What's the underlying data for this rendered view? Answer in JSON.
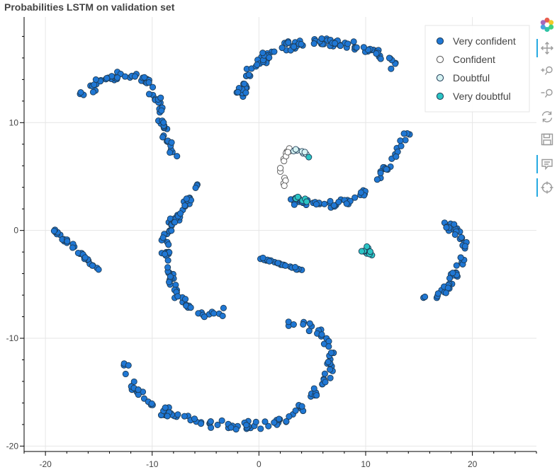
{
  "chart_data": {
    "type": "scatter",
    "title": "Probabilities LSTM on validation set",
    "xlabel": "",
    "ylabel": "",
    "xlim": [
      -22,
      26
    ],
    "ylim": [
      -20.5,
      19.8
    ],
    "x_ticks": [
      -20,
      -10,
      0,
      10,
      20
    ],
    "y_ticks": [
      -20,
      -10,
      0,
      10
    ],
    "x_tick_labels": [
      "-20",
      "-10",
      "0",
      "10",
      "20"
    ],
    "y_tick_labels": [
      "-20",
      "-10",
      "0",
      "10"
    ],
    "grid": true,
    "legend_position": "top-right",
    "series": [
      {
        "name": "Very confident",
        "color": "#1f77d4",
        "clusters": [
          {
            "points": [
              [
                -16.2,
                12.0
              ],
              [
                -16.5,
                12.7
              ],
              [
                -15.8,
                13.1
              ],
              [
                -15.0,
                13.8
              ],
              [
                -14.0,
                14.2
              ],
              [
                -13.0,
                14.6
              ],
              [
                -12.0,
                14.4
              ],
              [
                -11.0,
                14.2
              ],
              [
                -10.3,
                13.5
              ],
              [
                -9.8,
                12.8
              ],
              [
                -9.4,
                11.7
              ],
              [
                -9.1,
                10.5
              ],
              [
                -8.9,
                9.4
              ],
              [
                -8.6,
                8.3
              ],
              [
                -8.3,
                7.5
              ],
              [
                -8.1,
                7.0
              ]
            ],
            "spread": 0.5,
            "n": 75,
            "seed": 11
          },
          {
            "points": [
              [
                -1.8,
                12.0
              ],
              [
                -1.5,
                13.2
              ],
              [
                -1.0,
                14.3
              ],
              [
                -0.4,
                15.3
              ],
              [
                0.3,
                16.0
              ],
              [
                1.5,
                16.7
              ],
              [
                3.0,
                17.1
              ],
              [
                5.0,
                17.5
              ],
              [
                7.0,
                17.4
              ],
              [
                9.0,
                17.1
              ],
              [
                10.5,
                16.7
              ],
              [
                11.6,
                16.2
              ],
              [
                12.4,
                15.6
              ],
              [
                12.8,
                15.2
              ],
              [
                12.6,
                14.6
              ]
            ],
            "spread": 0.5,
            "n": 110,
            "seed": 23
          },
          {
            "points": [
              [
                -19.3,
                0.1
              ],
              [
                -18.5,
                -0.6
              ],
              [
                -17.5,
                -1.4
              ],
              [
                -16.5,
                -2.3
              ],
              [
                -15.7,
                -3.1
              ],
              [
                -15.0,
                -3.7
              ]
            ],
            "spread": 0.18,
            "n": 35,
            "seed": 37
          },
          {
            "points": [
              [
                -5.8,
                4.6
              ],
              [
                -6.2,
                3.6
              ],
              [
                -7.0,
                2.2
              ],
              [
                -8.0,
                0.8
              ],
              [
                -8.8,
                -0.7
              ],
              [
                -8.8,
                -2.2
              ],
              [
                -8.4,
                -3.8
              ],
              [
                -8.2,
                -5.0
              ],
              [
                -7.5,
                -6.0
              ],
              [
                -6.8,
                -6.9
              ],
              [
                -6.0,
                -7.5
              ],
              [
                -5.0,
                -7.8
              ],
              [
                -4.0,
                -7.7
              ],
              [
                -3.3,
                -7.6
              ]
            ],
            "spread": 0.45,
            "n": 85,
            "seed": 41
          },
          {
            "points": [
              [
                0.0,
                -2.5
              ],
              [
                1.0,
                -2.8
              ],
              [
                2.0,
                -3.1
              ],
              [
                3.0,
                -3.4
              ],
              [
                3.8,
                -3.6
              ],
              [
                4.3,
                -3.8
              ]
            ],
            "spread": 0.12,
            "n": 26,
            "seed": 53
          },
          {
            "points": [
              [
                3.0,
                2.7
              ],
              [
                5.0,
                2.5
              ],
              [
                7.0,
                2.4
              ],
              [
                8.5,
                2.8
              ],
              [
                9.8,
                3.5
              ],
              [
                11.0,
                4.7
              ],
              [
                12.3,
                6.2
              ],
              [
                13.2,
                7.5
              ],
              [
                13.6,
                8.8
              ],
              [
                14.2,
                8.9
              ]
            ],
            "spread": 0.35,
            "n": 60,
            "seed": 67
          },
          {
            "points": [
              [
                17.5,
                0.6
              ],
              [
                18.5,
                0.0
              ],
              [
                19.2,
                -1.2
              ],
              [
                19.1,
                -2.6
              ],
              [
                18.5,
                -3.9
              ],
              [
                17.8,
                -5.1
              ],
              [
                17.0,
                -5.9
              ],
              [
                16.3,
                -6.3
              ],
              [
                15.5,
                -6.1
              ]
            ],
            "spread": 0.45,
            "n": 55,
            "seed": 71
          },
          {
            "points": [
              [
                -12.8,
                -12.3
              ],
              [
                -12.0,
                -13.8
              ],
              [
                -11.2,
                -15.1
              ],
              [
                -10.0,
                -16.3
              ],
              [
                -8.0,
                -17.2
              ],
              [
                -6.0,
                -17.6
              ],
              [
                -4.0,
                -17.9
              ],
              [
                -2.0,
                -18.2
              ],
              [
                0.0,
                -18.0
              ],
              [
                2.0,
                -17.7
              ],
              [
                3.5,
                -17.0
              ],
              [
                4.7,
                -15.8
              ],
              [
                5.8,
                -14.3
              ],
              [
                6.6,
                -13.0
              ],
              [
                6.8,
                -11.3
              ],
              [
                6.2,
                -9.8
              ],
              [
                5.2,
                -9.0
              ],
              [
                4.0,
                -8.6
              ],
              [
                3.0,
                -8.7
              ]
            ],
            "spread": 0.5,
            "n": 125,
            "seed": 83
          }
        ]
      },
      {
        "name": "Confident",
        "color": "#ffffff",
        "clusters": [
          {
            "points": [
              [
                3.0,
                7.9
              ],
              [
                2.6,
                7.1
              ],
              [
                2.3,
                6.3
              ],
              [
                2.1,
                5.5
              ],
              [
                2.4,
                4.6
              ],
              [
                2.7,
                3.7
              ]
            ],
            "spread": 0.25,
            "n": 14,
            "seed": 97
          }
        ]
      },
      {
        "name": "Doubtful",
        "color": "#d6f3f3",
        "clusters": [
          {
            "points": [
              [
                3.0,
                7.2
              ],
              [
                3.7,
                7.5
              ],
              [
                4.3,
                7.3
              ],
              [
                4.7,
                7.0
              ]
            ],
            "spread": 0.22,
            "n": 7,
            "seed": 101
          }
        ]
      },
      {
        "name": "Very doubtful",
        "color": "#2bc4c4",
        "clusters": [
          {
            "points": [
              [
                3.4,
                3.0
              ],
              [
                4.0,
                2.9
              ],
              [
                4.7,
                2.7
              ]
            ],
            "spread": 0.18,
            "n": 8,
            "seed": 113
          },
          {
            "points": [
              [
                9.5,
                -1.8
              ],
              [
                10.0,
                -2.0
              ],
              [
                10.2,
                -1.6
              ],
              [
                10.5,
                -2.3
              ]
            ],
            "spread": 0.25,
            "n": 12,
            "seed": 127
          },
          {
            "points": [
              [
                4.7,
                6.8
              ]
            ],
            "spread": 0.05,
            "n": 1,
            "seed": 131
          }
        ]
      }
    ]
  },
  "toolbar": {
    "tools": [
      {
        "name": "bokeh-logo",
        "icon": "bokeh-logo-icon"
      },
      {
        "name": "pan",
        "icon": "pan-icon"
      },
      {
        "name": "zoom-in",
        "icon": "zoom-in-icon"
      },
      {
        "name": "zoom-out",
        "icon": "zoom-out-icon"
      },
      {
        "name": "reset",
        "icon": "reset-icon"
      },
      {
        "name": "save",
        "icon": "save-icon"
      },
      {
        "name": "hover",
        "icon": "hover-icon"
      },
      {
        "name": "crosshair",
        "icon": "crosshair-icon"
      }
    ]
  }
}
